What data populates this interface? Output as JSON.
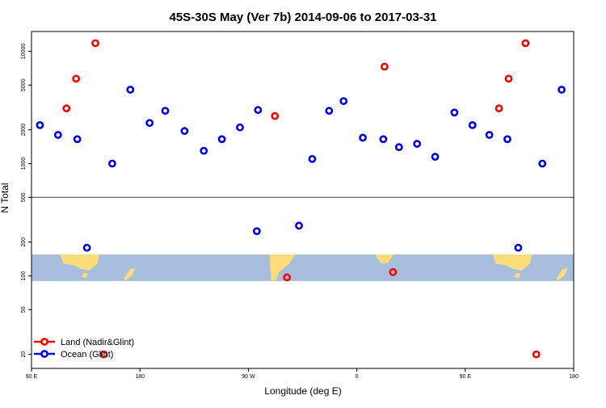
{
  "chart_data": {
    "type": "scatter",
    "title": "45S-30S May (Ver 7b)   2014-09-06 to 2017-03-31",
    "xlabel": "Longitude (deg E)",
    "ylabel": "N Total",
    "x_scale": "linear",
    "y_scale": "log",
    "xlim": [
      90,
      540
    ],
    "ylim": [
      15,
      15000
    ],
    "x_ticks": [
      {
        "value": 90,
        "label": "90 E"
      },
      {
        "value": 180,
        "label": "180"
      },
      {
        "value": 270,
        "label": "90 W"
      },
      {
        "value": 360,
        "label": "0"
      },
      {
        "value": 450,
        "label": "90 E"
      },
      {
        "value": 540,
        "label": "180"
      }
    ],
    "y_ticks": [
      {
        "value": 20,
        "label": "20"
      },
      {
        "value": 50,
        "label": "50"
      },
      {
        "value": 100,
        "label": "100"
      },
      {
        "value": 200,
        "label": "200"
      },
      {
        "value": 500,
        "label": "500"
      },
      {
        "value": 1000,
        "label": "1000"
      },
      {
        "value": 2000,
        "label": "2000"
      },
      {
        "value": 5000,
        "label": "5000"
      },
      {
        "value": 10000,
        "label": "10000"
      }
    ],
    "reference_line": 500,
    "map_strip_y_range": [
      90,
      155
    ],
    "legend_position": "bottom-left",
    "grid": false,
    "series": [
      {
        "name": "Land (Nadir&Glint)",
        "color": "#ff0000",
        "points": [
          {
            "x": 119,
            "y": 3100
          },
          {
            "x": 127,
            "y": 5700
          },
          {
            "x": 143,
            "y": 11800
          },
          {
            "x": 150,
            "y": 20
          },
          {
            "x": 292,
            "y": 2650
          },
          {
            "x": 302,
            "y": 97
          },
          {
            "x": 383,
            "y": 7300
          },
          {
            "x": 390,
            "y": 108
          },
          {
            "x": 478,
            "y": 3100
          },
          {
            "x": 486,
            "y": 5700
          },
          {
            "x": 500,
            "y": 11800
          },
          {
            "x": 509,
            "y": 20
          }
        ]
      },
      {
        "name": "Ocean (Glint)",
        "color": "#0000ee",
        "points": [
          {
            "x": 97,
            "y": 2200
          },
          {
            "x": 112,
            "y": 1800
          },
          {
            "x": 128,
            "y": 1650
          },
          {
            "x": 136,
            "y": 178
          },
          {
            "x": 157,
            "y": 1000
          },
          {
            "x": 172,
            "y": 4550
          },
          {
            "x": 188,
            "y": 2300
          },
          {
            "x": 201,
            "y": 2950
          },
          {
            "x": 217,
            "y": 1950
          },
          {
            "x": 233,
            "y": 1300
          },
          {
            "x": 248,
            "y": 1650
          },
          {
            "x": 263,
            "y": 2100
          },
          {
            "x": 277,
            "y": 250
          },
          {
            "x": 278,
            "y": 3000
          },
          {
            "x": 312,
            "y": 280
          },
          {
            "x": 323,
            "y": 1100
          },
          {
            "x": 337,
            "y": 2950
          },
          {
            "x": 349,
            "y": 3600
          },
          {
            "x": 365,
            "y": 1700
          },
          {
            "x": 382,
            "y": 1650
          },
          {
            "x": 395,
            "y": 1400
          },
          {
            "x": 410,
            "y": 1500
          },
          {
            "x": 425,
            "y": 1150
          },
          {
            "x": 441,
            "y": 2850
          },
          {
            "x": 456,
            "y": 2200
          },
          {
            "x": 470,
            "y": 1800
          },
          {
            "x": 485,
            "y": 1650
          },
          {
            "x": 494,
            "y": 178
          },
          {
            "x": 514,
            "y": 1000
          },
          {
            "x": 530,
            "y": 4550
          }
        ]
      }
    ]
  }
}
